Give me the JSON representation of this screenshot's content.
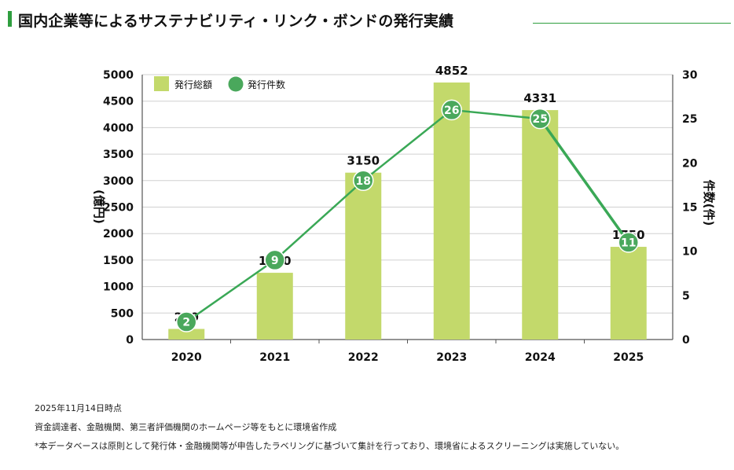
{
  "page": {
    "title": "国内企業等によるサステナビリティ・リンク・ボンドの発行実績"
  },
  "colors": {
    "accent": "#2f9e3f",
    "bar": "#c3d96b",
    "line": "#3aa856",
    "point": "#4aa85c",
    "grid": "#d0d0d0"
  },
  "chart_data": {
    "type": "bar",
    "title": "",
    "categories": [
      "2020",
      "2021",
      "2022",
      "2023",
      "2024",
      "2025"
    ],
    "series": [
      {
        "name": "発行総額",
        "type": "bar",
        "axis": "left",
        "values": [
          200,
          1260,
          3150,
          4852,
          4331,
          1750
        ]
      },
      {
        "name": "発行件数",
        "type": "line",
        "axis": "right",
        "values": [
          2,
          9,
          18,
          26,
          25,
          11
        ]
      }
    ],
    "ylabel_left": "(億円)",
    "ylabel_right": "件数(件)",
    "ylim_left": [
      0,
      5000
    ],
    "ylim_right": [
      0,
      30
    ],
    "yticks_left": [
      0,
      500,
      1000,
      1500,
      2000,
      2500,
      3000,
      3500,
      4000,
      4500,
      5000
    ],
    "yticks_right": [
      0,
      5,
      10,
      15,
      20,
      25,
      30
    ],
    "legend": "top-left",
    "grid": true
  },
  "notes": [
    "2025年11月14日時点",
    "資金調達者、金融機関、第三者評価機関のホームページ等をもとに環境省作成",
    "*本データベースは原則として発行体・金融機関等が申告したラベリングに基づいて集計を行っており、環境省によるスクリーニングは実施していない。"
  ]
}
